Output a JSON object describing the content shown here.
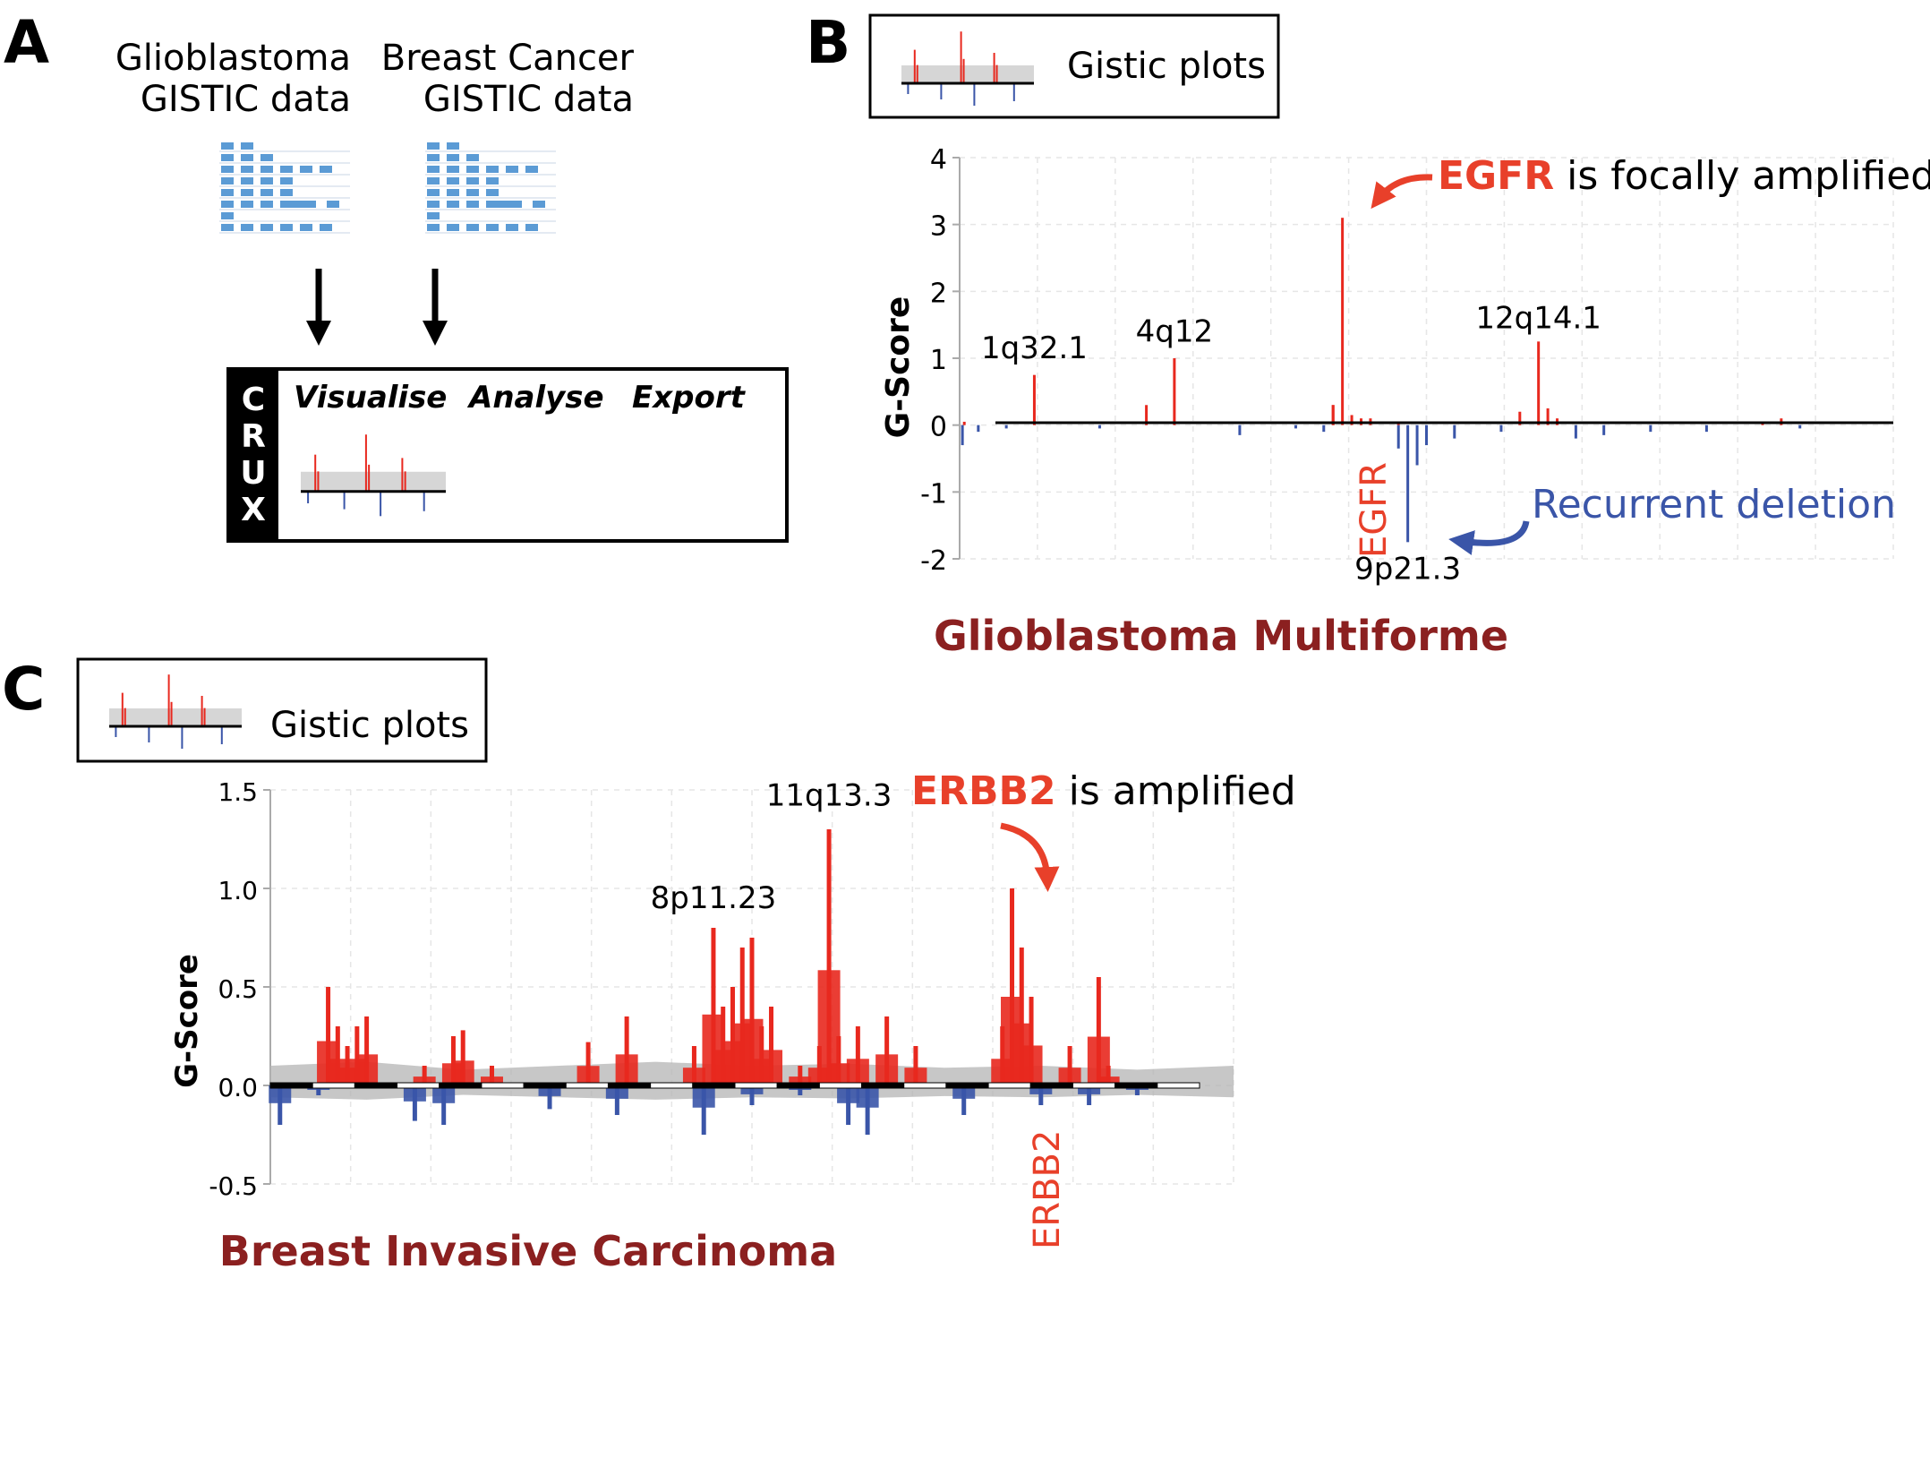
{
  "panels": {
    "a": {
      "letter": "A",
      "sources": [
        {
          "line1": "Glioblastoma",
          "line2": "GISTIC data"
        },
        {
          "line1": "Breast Cancer",
          "line2": "GISTIC data"
        }
      ],
      "crux": {
        "logo_letters": [
          "C",
          "R",
          "U",
          "X"
        ],
        "menu": [
          "Visualise",
          "Analyse",
          "Export"
        ]
      }
    },
    "b": {
      "letter": "B",
      "thumb_label": "Gistic plots"
    },
    "c": {
      "letter": "C",
      "thumb_label": "Gistic plots"
    }
  },
  "colors": {
    "amplification": "#e8281e",
    "deletion": "#3a55a8",
    "background_score": "#b4b4b4",
    "title": "#8b2020",
    "annotation_red": "#e8402a",
    "annotation_blue": "#3a55a8",
    "table_cell": "#5b9bd5"
  },
  "chart_data": [
    {
      "type": "area",
      "title": "Glioblastoma Multiforme",
      "xlabel": "",
      "ylabel": "G-Score",
      "ylim": [
        -2,
        4
      ],
      "y_ticks": [
        "4",
        "3",
        "2",
        "1",
        "0",
        "-1",
        "-2"
      ],
      "grid": true,
      "series": [
        {
          "name": "",
          "color": "#e8281e",
          "x": [
            0.005,
            0.08,
            0.2,
            0.23,
            0.4,
            0.4,
            0.41,
            0.42,
            0.43,
            0.44,
            0.47,
            0.6,
            0.62,
            0.63,
            0.64,
            0.86,
            0.88
          ],
          "values": [
            0.05,
            0.75,
            0.3,
            1.0,
            0.3,
            0.3,
            3.1,
            0.15,
            0.1,
            0.1,
            0.05,
            0.2,
            1.25,
            0.25,
            0.1,
            0.05,
            0.1
          ]
        },
        {
          "name": "",
          "color": "#3a55a8",
          "x": [
            0.003,
            0.02,
            0.05,
            0.15,
            0.3,
            0.36,
            0.39,
            0.47,
            0.48,
            0.49,
            0.5,
            0.53,
            0.58,
            0.66,
            0.69,
            0.74,
            0.8,
            0.9
          ],
          "values": [
            -0.3,
            -0.1,
            -0.05,
            -0.05,
            -0.15,
            -0.05,
            -0.1,
            -0.35,
            -1.75,
            -0.6,
            -0.3,
            -0.2,
            -0.1,
            -0.2,
            -0.15,
            -0.1,
            -0.1,
            -0.05
          ]
        }
      ],
      "annotations": [
        {
          "text": "1q32.1",
          "x": 0.08,
          "y": 1.0
        },
        {
          "text": "4q12",
          "x": 0.23,
          "y": 1.25
        },
        {
          "text": "12q14.1",
          "x": 0.62,
          "y": 1.45
        },
        {
          "text": "9p21.3",
          "x": 0.48,
          "y": -2.3
        }
      ],
      "callouts": [
        {
          "highlight": "EGFR",
          "rest": " is focally amplified"
        },
        {
          "highlight": "",
          "rest": "Recurrent deletion"
        }
      ],
      "gene_label": "EGFR"
    },
    {
      "type": "area",
      "title": "Breast Invasive Carcinoma",
      "xlabel": "",
      "ylabel": "G-Score",
      "ylim": [
        -0.5,
        1.5
      ],
      "y_ticks": [
        "1.5",
        "1.0",
        "0.5",
        "0.0",
        "-0.5"
      ],
      "grid": true,
      "series": [
        {
          "name": "",
          "color": "#e8281e",
          "x": [
            0.06,
            0.07,
            0.08,
            0.09,
            0.1,
            0.16,
            0.19,
            0.2,
            0.23,
            0.33,
            0.37,
            0.44,
            0.46,
            0.47,
            0.48,
            0.49,
            0.5,
            0.51,
            0.52,
            0.55,
            0.57,
            0.58,
            0.59,
            0.61,
            0.64,
            0.67,
            0.76,
            0.77,
            0.78,
            0.79,
            0.83,
            0.86,
            0.87
          ],
          "values": [
            0.5,
            0.3,
            0.2,
            0.3,
            0.35,
            0.1,
            0.25,
            0.28,
            0.1,
            0.22,
            0.35,
            0.2,
            0.8,
            0.4,
            0.5,
            0.7,
            0.75,
            0.3,
            0.4,
            0.1,
            0.2,
            1.3,
            0.25,
            0.3,
            0.35,
            0.2,
            0.3,
            1.0,
            0.7,
            0.45,
            0.2,
            0.55,
            0.1
          ]
        },
        {
          "name": "",
          "color": "#3a55a8",
          "x": [
            0.01,
            0.05,
            0.15,
            0.18,
            0.29,
            0.36,
            0.45,
            0.5,
            0.55,
            0.6,
            0.62,
            0.72,
            0.8,
            0.85,
            0.9
          ],
          "values": [
            -0.2,
            -0.05,
            -0.18,
            -0.2,
            -0.12,
            -0.15,
            -0.25,
            -0.1,
            -0.05,
            -0.2,
            -0.25,
            -0.15,
            -0.1,
            -0.1,
            -0.05
          ]
        },
        {
          "name": "",
          "color": "#b4b4b4",
          "x": [
            0.0,
            0.1,
            0.2,
            0.3,
            0.4,
            0.5,
            0.6,
            0.7,
            0.8,
            0.9,
            1.0
          ],
          "values": [
            0.1,
            0.12,
            0.08,
            0.1,
            0.12,
            0.1,
            0.11,
            0.09,
            0.1,
            0.08,
            0.1
          ]
        }
      ],
      "annotations": [
        {
          "text": "11q13.3",
          "x": 0.58,
          "y": 1.42
        },
        {
          "text": "8p11.23",
          "x": 0.46,
          "y": 0.9
        }
      ],
      "callouts": [
        {
          "highlight": "ERBB2",
          "rest": " is amplified"
        }
      ],
      "gene_label": "ERBB2"
    }
  ]
}
